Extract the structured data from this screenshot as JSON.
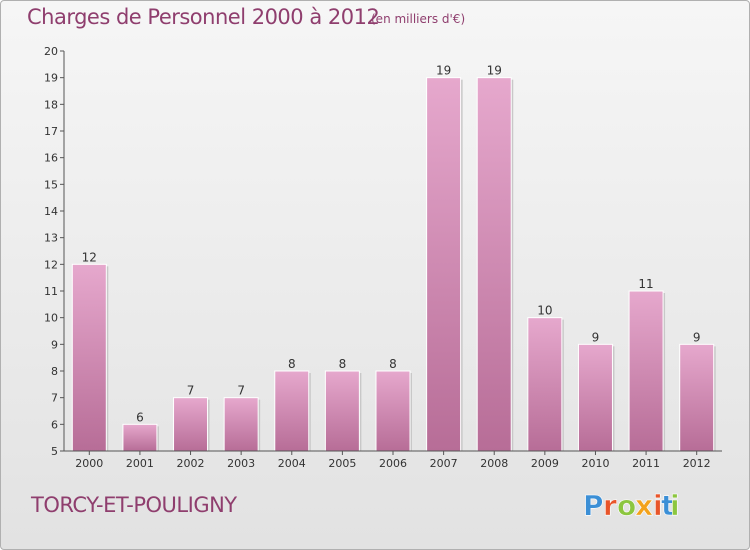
{
  "header": {
    "title": "Charges de Personnel 2000 à 2012",
    "subtitle": "(en milliers d'€)"
  },
  "footer": {
    "commune": "TORCY-ET-POULIGNY"
  },
  "logo": {
    "text": "Proxiti",
    "colors": [
      "#3b8fd6",
      "#e8552a",
      "#8cc63f",
      "#f3a21b",
      "#e8552a",
      "#3b8fd6",
      "#8cc63f"
    ]
  },
  "colors": {
    "accent": "#8f3e6e",
    "bar_top": "#e6a8cd",
    "bar_bottom": "#b76d97",
    "axis": "#555555"
  },
  "chart_data": {
    "type": "bar",
    "title": "Charges de Personnel 2000 à 2012",
    "subtitle": "(en milliers d'€)",
    "categories": [
      "2000",
      "2001",
      "2002",
      "2003",
      "2004",
      "2005",
      "2006",
      "2007",
      "2008",
      "2009",
      "2010",
      "2011",
      "2012"
    ],
    "values": [
      12,
      6,
      7,
      7,
      8,
      8,
      8,
      19,
      19,
      10,
      9,
      11,
      9
    ],
    "ylim": [
      5,
      20
    ],
    "yticks": [
      5,
      6,
      7,
      8,
      9,
      10,
      11,
      12,
      13,
      14,
      15,
      16,
      17,
      18,
      19,
      20
    ],
    "grid": false,
    "data_labels": true
  }
}
